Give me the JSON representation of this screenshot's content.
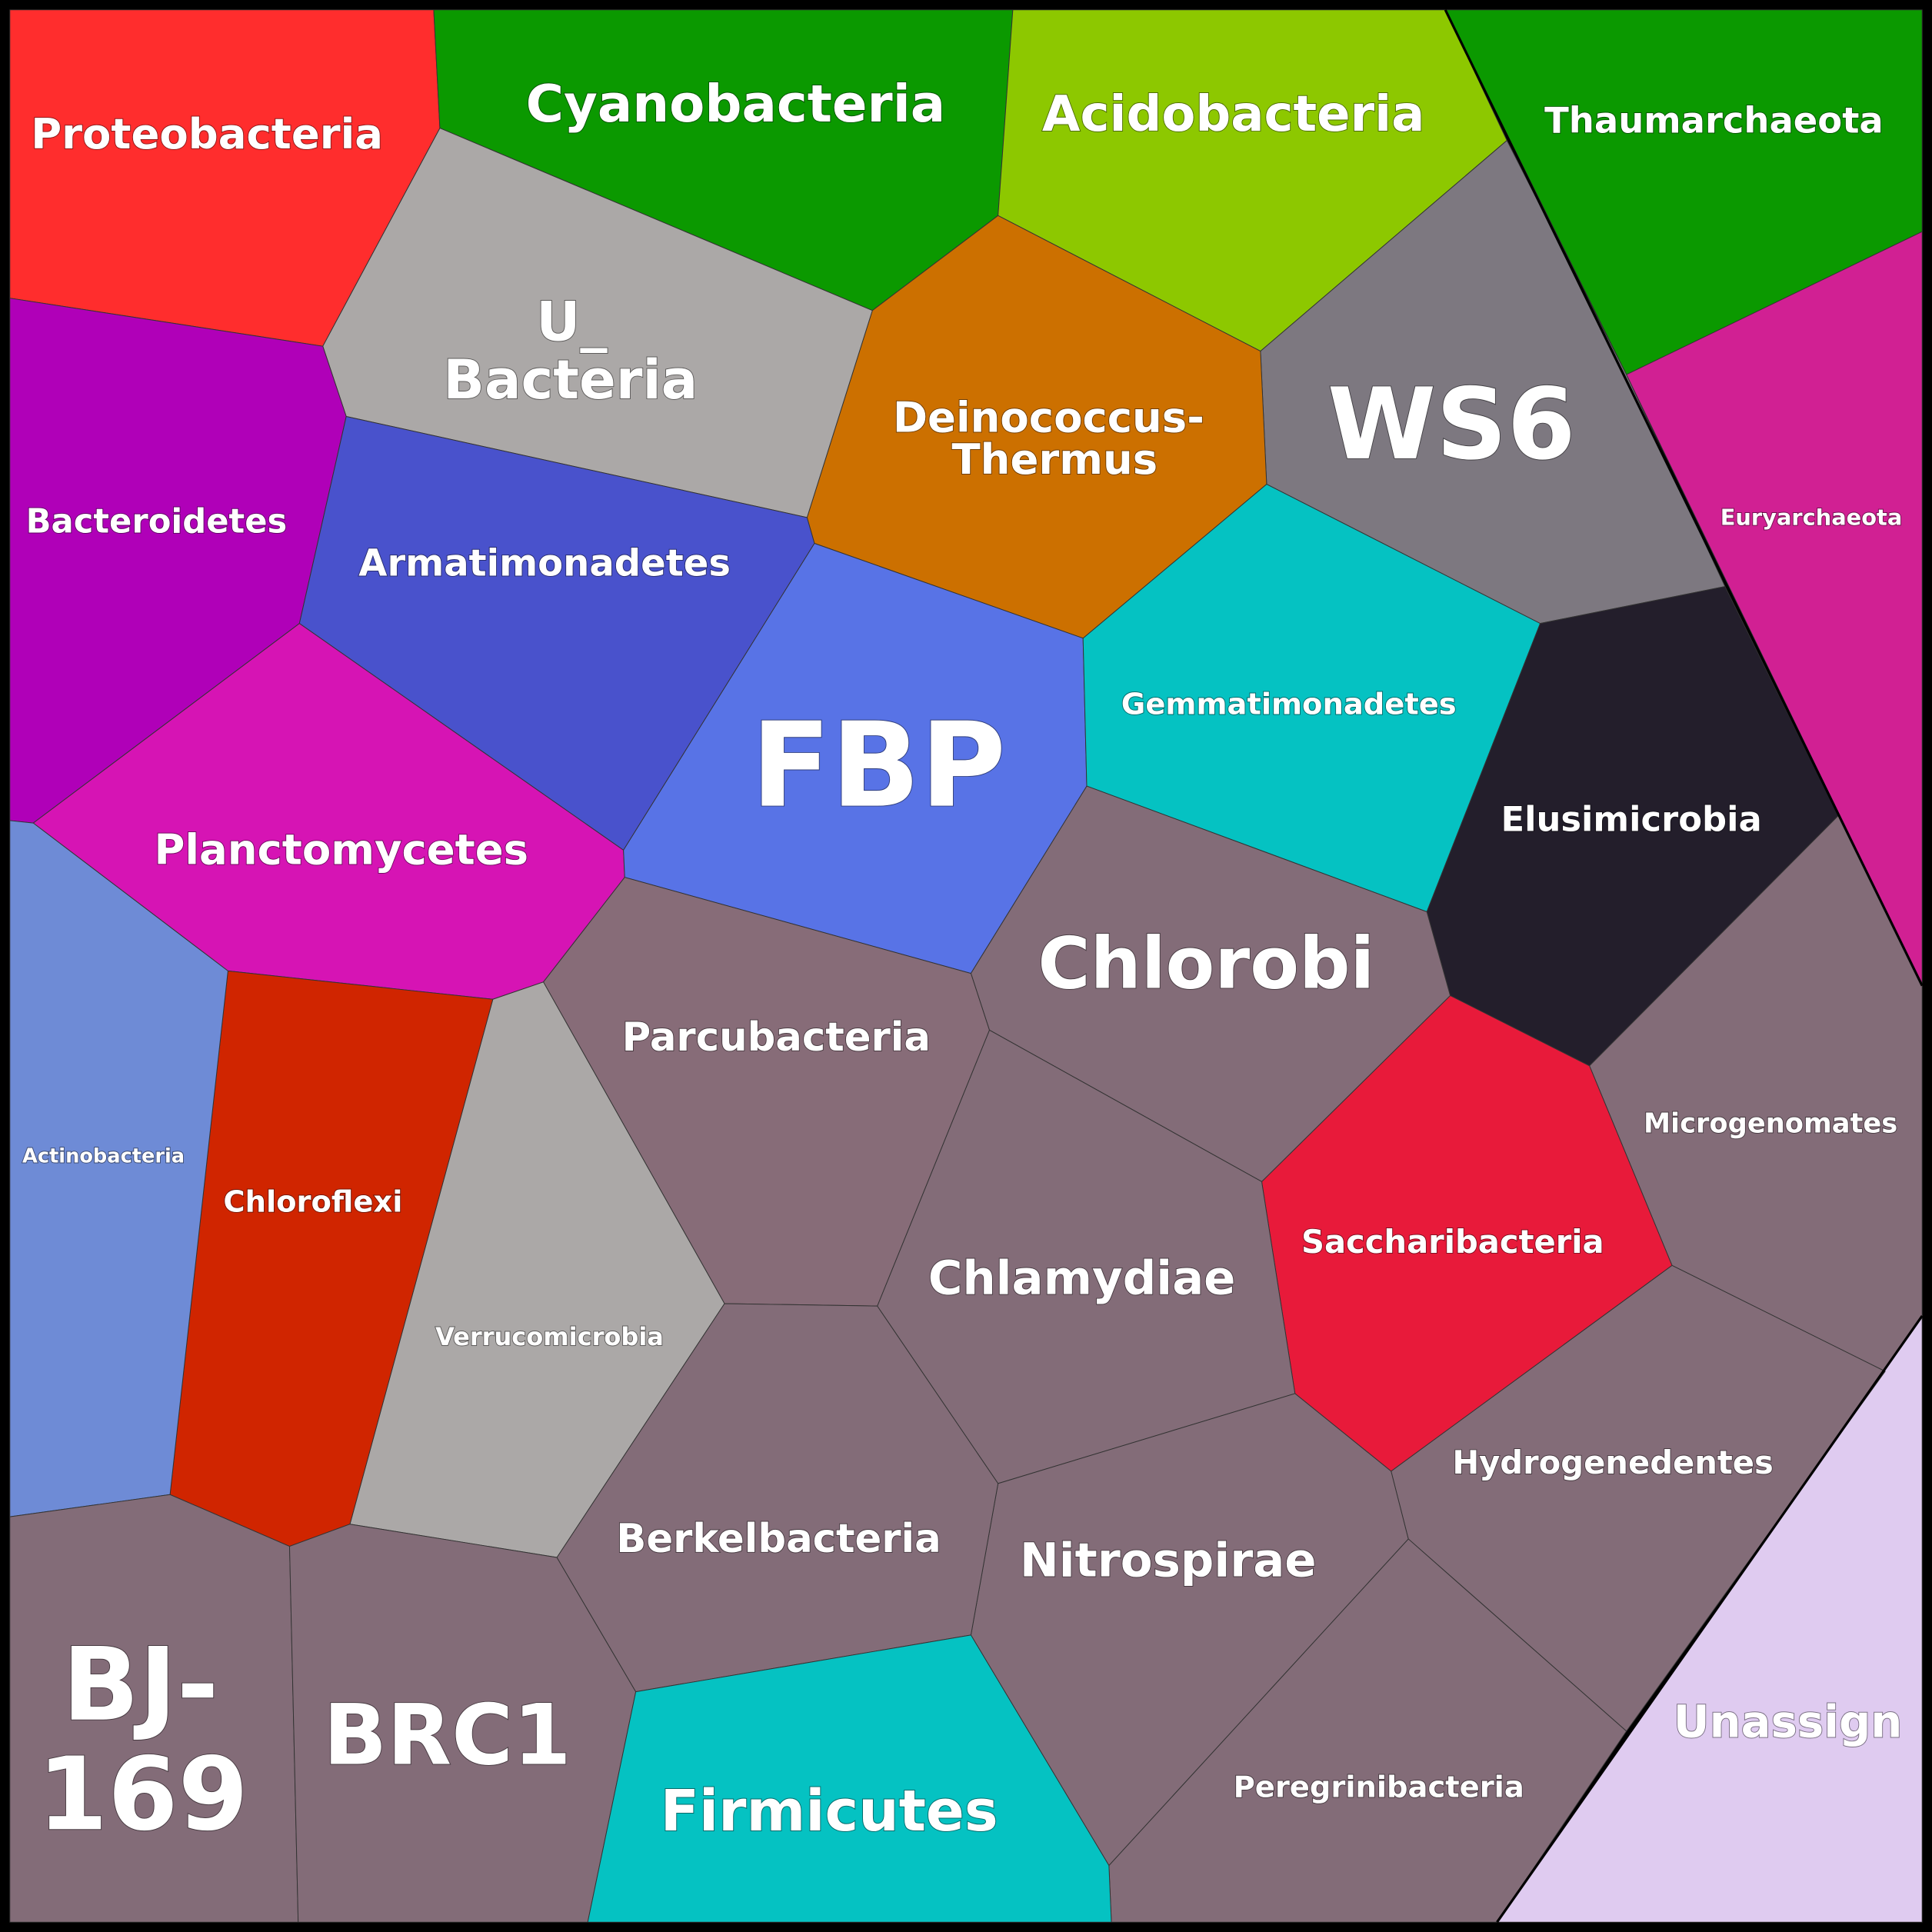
{
  "cells": [
    {
      "lines": [
        "Proteobacteria"
      ]
    },
    {
      "lines": [
        "Cyanobacteria"
      ]
    },
    {
      "lines": [
        "Acidobacteria"
      ]
    },
    {
      "lines": [
        "Thaumarchaeota"
      ]
    },
    {
      "lines": [
        "Euryarchaeota"
      ]
    },
    {
      "lines": [
        "WS6"
      ]
    },
    {
      "lines": [
        "Deinococcus-",
        "Thermus"
      ]
    },
    {
      "lines": [
        "U_",
        "Bacteria"
      ]
    },
    {
      "lines": [
        "Bacteroidetes"
      ]
    },
    {
      "lines": [
        "Armatimonadetes"
      ]
    },
    {
      "lines": [
        "Planctomycetes"
      ]
    },
    {
      "lines": [
        "FBP"
      ]
    },
    {
      "lines": [
        "Gemmatimonadetes"
      ]
    },
    {
      "lines": [
        "Elusimicrobia"
      ]
    },
    {
      "lines": [
        "Microgenomates"
      ]
    },
    {
      "lines": [
        "Unassign"
      ]
    },
    {
      "lines": [
        "Hydrogenedentes"
      ]
    },
    {
      "lines": [
        "Peregrinibacteria"
      ]
    },
    {
      "lines": [
        "Saccharibacteria"
      ]
    },
    {
      "lines": [
        "Chlorobi"
      ]
    },
    {
      "lines": [
        "Chlamydiae"
      ]
    },
    {
      "lines": [
        "Nitrospirae"
      ]
    },
    {
      "lines": [
        "Parcubacteria"
      ]
    },
    {
      "lines": [
        "Verrucomicrobia"
      ]
    },
    {
      "lines": [
        "Chloroflexi"
      ]
    },
    {
      "lines": [
        "Actinobacteria"
      ]
    },
    {
      "lines": [
        "BJ-",
        "169"
      ]
    },
    {
      "lines": [
        "BRC1"
      ]
    },
    {
      "lines": [
        "Berkelbacteria"
      ]
    },
    {
      "lines": [
        "Firmicutes"
      ]
    }
  ]
}
